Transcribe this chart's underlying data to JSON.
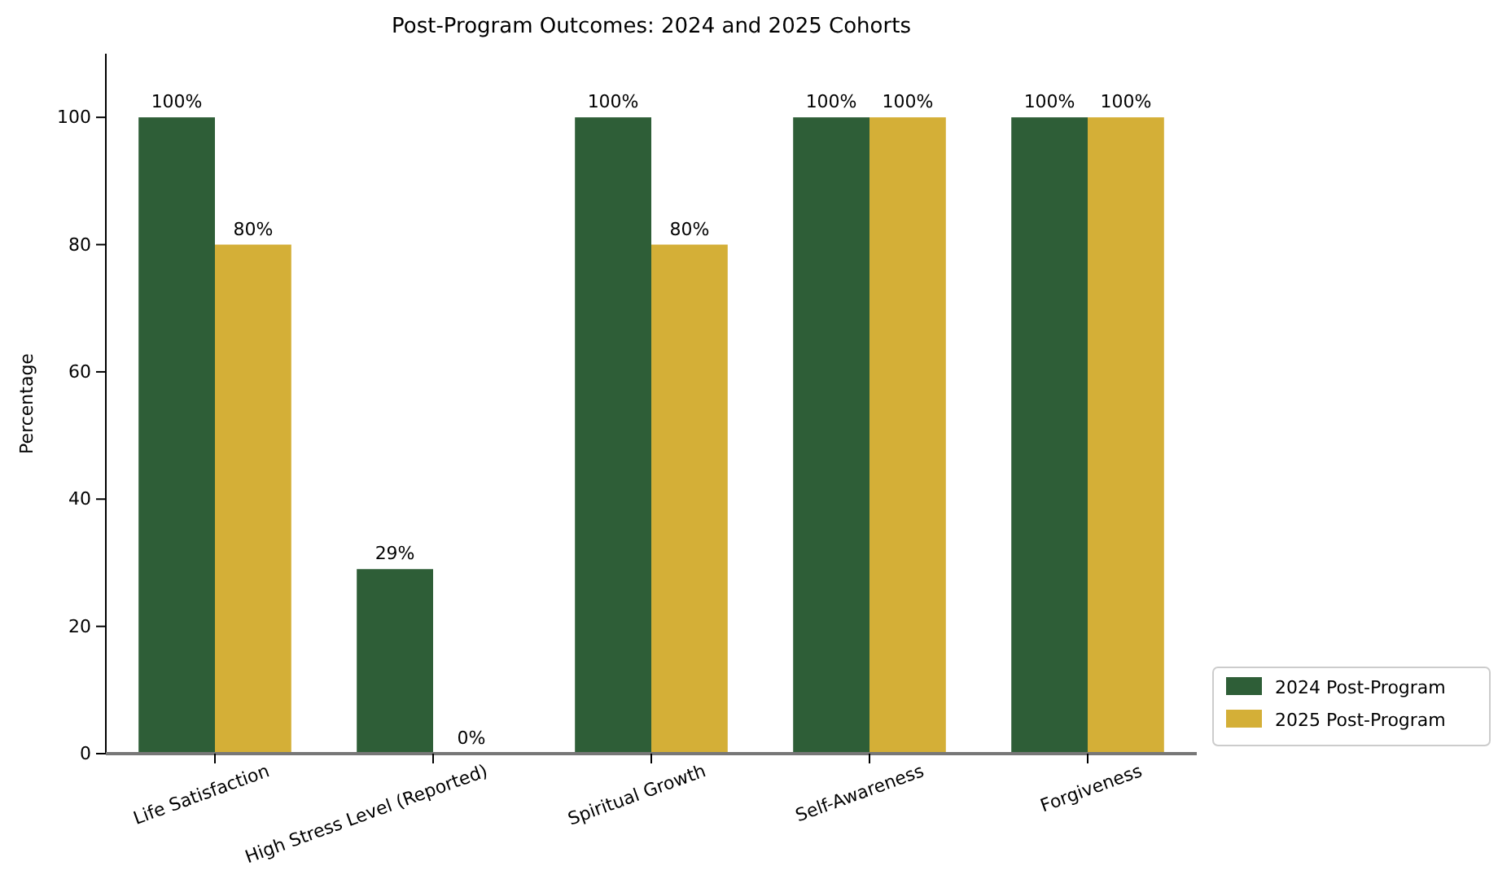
{
  "chart_data": {
    "type": "bar",
    "title": "Post-Program Outcomes: 2024 and 2025 Cohorts",
    "ylabel": "Percentage",
    "categories": [
      "Life Satisfaction",
      "High Stress Level (Reported)",
      "Spiritual Growth",
      "Self-Awareness",
      "Forgiveness"
    ],
    "series": [
      {
        "name": "2024 Post-Program",
        "color": "#2e5e37",
        "values": [
          100,
          29,
          100,
          100,
          100
        ],
        "value_labels": [
          "100%",
          "29%",
          "100%",
          "100%",
          "100%"
        ]
      },
      {
        "name": "2025 Post-Program",
        "color": "#d4af37",
        "values": [
          80,
          0,
          80,
          100,
          100
        ],
        "value_labels": [
          "80%",
          "0%",
          "80%",
          "100%",
          "100%"
        ]
      }
    ],
    "ylim": [
      0,
      110
    ],
    "yticks": [
      0,
      20,
      40,
      60,
      80,
      100
    ],
    "grid": false,
    "legend": "bottom right"
  }
}
